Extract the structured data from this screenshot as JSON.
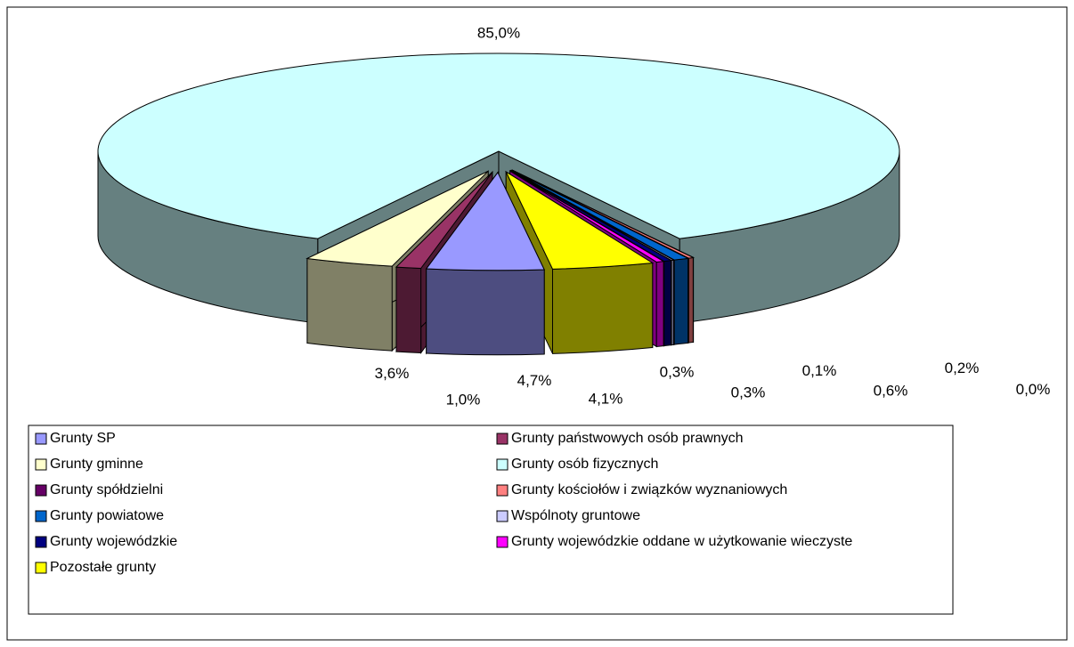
{
  "chart_data": {
    "type": "pie3d",
    "categories": [
      "Grunty SP",
      "Grunty państwowych osób prawnych",
      "Grunty gminne",
      "Grunty osób fizycznych",
      "Grunty spółdzielni",
      "Grunty kościołów i związków wyznaniowych",
      "Grunty powiatowe",
      "Wspólnoty gruntowe",
      "Grunty wojewódzkie",
      "Grunty wojewódzkie oddane w użytkowanie wieczyste",
      "Pozostałe grunty"
    ],
    "values": [
      4.7,
      1.0,
      3.6,
      85.0,
      0.0,
      0.2,
      0.6,
      0.1,
      0.3,
      0.3,
      4.1
    ],
    "value_labels": [
      "4,7%",
      "1,0%",
      "3,6%",
      "85,0%",
      "0,0%",
      "0,2%",
      "0,6%",
      "0,1%",
      "0,3%",
      "0,3%",
      "4,1%"
    ],
    "colors": [
      "#9999ff",
      "#993366",
      "#ffffcc",
      "#ccffff",
      "#660066",
      "#ff8080",
      "#0066cc",
      "#ccccff",
      "#000080",
      "#ff00ff",
      "#ffff00"
    ],
    "legend": "bottom"
  }
}
